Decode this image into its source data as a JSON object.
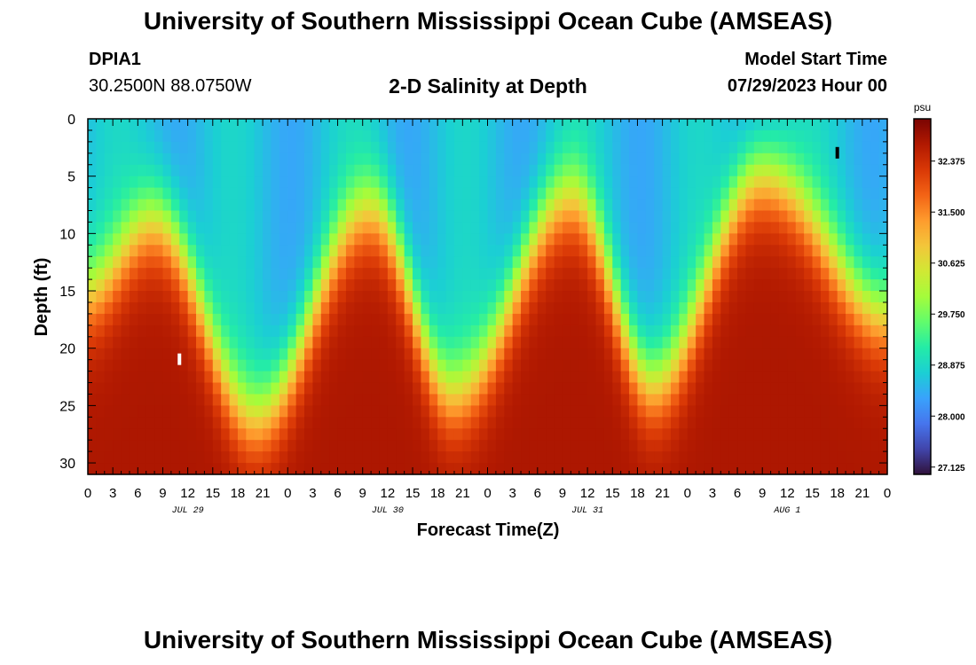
{
  "page": {
    "title_top": "University of Southern Mississippi Ocean Cube (AMSEAS)",
    "title_bottom": "University of Southern Mississippi Ocean Cube (AMSEAS)",
    "station_id": "DPIA1",
    "station_coords": "30.2500N  88.0750W",
    "model_start_label": "Model Start Time",
    "model_start_value": "07/29/2023 Hour 00"
  },
  "chart_data": {
    "type": "heatmap",
    "title": "2-D Salinity at Depth",
    "xlabel": "Forecast Time(Z)",
    "ylabel": "Depth (ft)",
    "x_range_hours": [
      0,
      96
    ],
    "y_range_ft": [
      0,
      31
    ],
    "x_tick_labels": [
      "0",
      "3",
      "6",
      "9",
      "12",
      "15",
      "18",
      "21",
      "0",
      "3",
      "6",
      "9",
      "12",
      "15",
      "18",
      "21",
      "0",
      "3",
      "6",
      "9",
      "12",
      "15",
      "18",
      "21",
      "0",
      "3",
      "6",
      "9",
      "12",
      "15",
      "18",
      "21",
      "0"
    ],
    "y_ticks": [
      0,
      5,
      10,
      15,
      20,
      25,
      30
    ],
    "date_labels": [
      {
        "label": "JUL 29",
        "hour": 12
      },
      {
        "label": "JUL 30",
        "hour": 36
      },
      {
        "label": "JUL 31",
        "hour": 60
      },
      {
        "label": "AUG 1",
        "hour": 84
      }
    ],
    "colorbar": {
      "unit": "psu",
      "min": 27.0,
      "max": 33.1,
      "tick_values": [
        32.375,
        31.5,
        30.625,
        29.75,
        28.875,
        28.0,
        27.125
      ],
      "tick_labels": [
        "32.375",
        "31.500",
        "30.625",
        "29.750",
        "28.875",
        "28.000",
        "27.125"
      ],
      "colors": [
        "#30123b",
        "#4145ab",
        "#4675ed",
        "#39a2fc",
        "#1bcfd4",
        "#24eca6",
        "#61fc6c",
        "#a4fc3b",
        "#d1e834",
        "#f3c63a",
        "#fe9b2d",
        "#f36315",
        "#d93806",
        "#b11901",
        "#7a0402"
      ]
    },
    "salinity_field": {
      "description": "Estimated salinity (psu) by depth (ft) vs forecast hour",
      "surface_psu": 28.6,
      "bottom_psu": 32.7,
      "front_depth_ft": [
        {
          "hour": 0,
          "depth": 15
        },
        {
          "hour": 8,
          "depth": 9
        },
        {
          "hour": 20,
          "depth": 26
        },
        {
          "hour": 34,
          "depth": 8
        },
        {
          "hour": 44,
          "depth": 24
        },
        {
          "hour": 58,
          "depth": 7
        },
        {
          "hour": 68,
          "depth": 23
        },
        {
          "hour": 81,
          "depth": 5
        },
        {
          "hour": 96,
          "depth": 17
        }
      ]
    },
    "markers": [
      {
        "hour": 11,
        "depth": 21,
        "color": "#ffffff"
      },
      {
        "hour": 90,
        "depth": 3,
        "color": "#000000"
      }
    ]
  }
}
